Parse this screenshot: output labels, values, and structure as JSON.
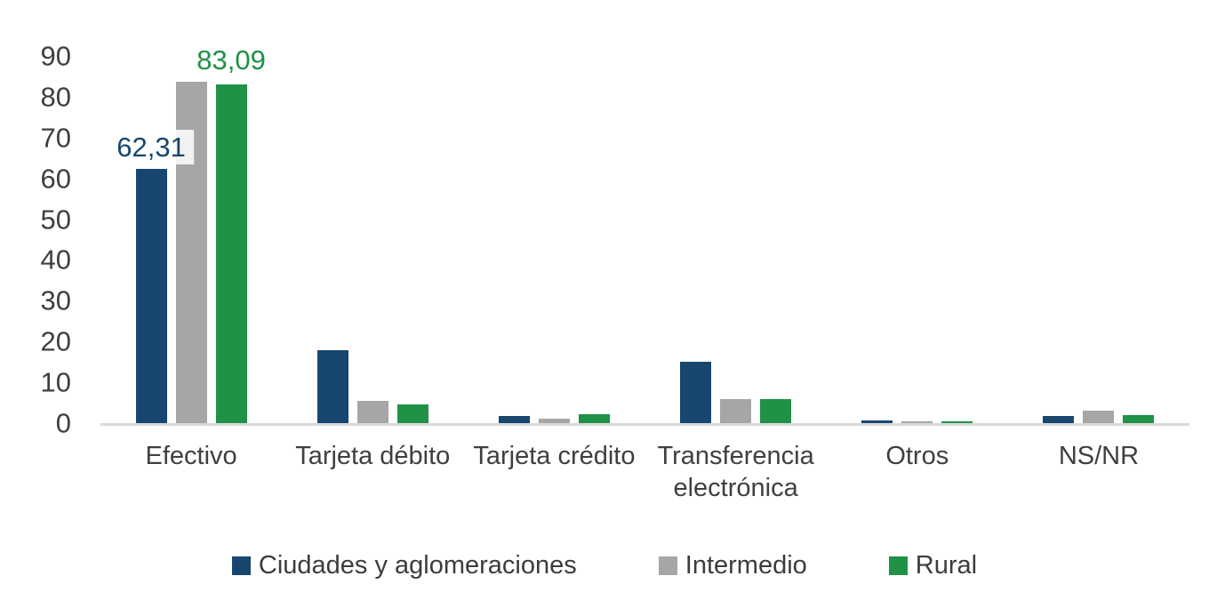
{
  "chart_data": {
    "type": "bar",
    "title": "",
    "categories": [
      "Efectivo",
      "Tarjeta débito",
      "Tarjeta crédito",
      "Transferencia electrónica",
      "Otros",
      "NS/NR"
    ],
    "series": [
      {
        "name": "Ciudades y aglomeraciones",
        "color": "#17466E",
        "values": [
          62.31,
          17.9,
          1.7,
          15.1,
          0.7,
          1.7
        ]
      },
      {
        "name": "Intermedio",
        "color": "#A6A6A6",
        "values": [
          83.6,
          5.5,
          1.0,
          5.9,
          0.4,
          3.1
        ]
      },
      {
        "name": "Rural",
        "color": "#1F9246",
        "values": [
          83.09,
          4.5,
          2.2,
          5.8,
          0.5,
          2.0
        ]
      }
    ],
    "data_labels": [
      {
        "category_index": 0,
        "series_index": 0,
        "text": "62,31",
        "boxed": true
      },
      {
        "category_index": 0,
        "series_index": 2,
        "text": "83,09",
        "boxed": false
      }
    ],
    "xlabel": "",
    "ylabel": "",
    "ylim": [
      0,
      90
    ],
    "yticks": [
      0,
      10,
      20,
      30,
      40,
      50,
      60,
      70,
      80,
      90
    ],
    "grid": false,
    "legend_position": "bottom",
    "axis_line_color": "#D9D9D9",
    "text_color": "#3F3F3F"
  }
}
